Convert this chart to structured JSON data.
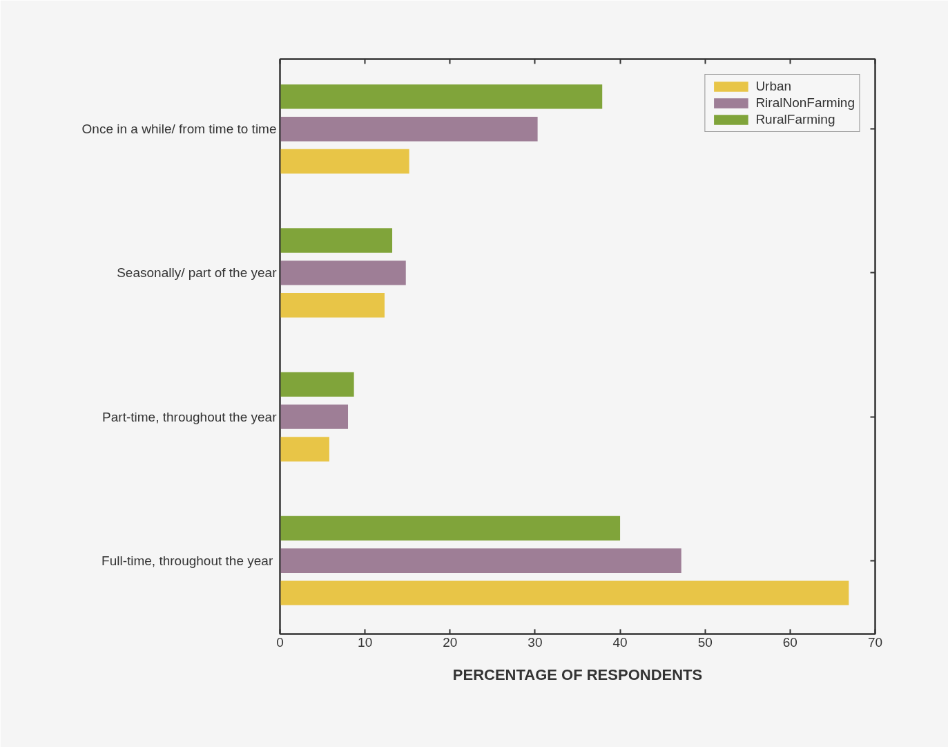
{
  "chart_data": {
    "type": "bar",
    "orientation": "horizontal",
    "xlabel": "PERCENTAGE OF RESPONDENTS",
    "categories": [
      "Once in a while/ from time to time",
      "Seasonally/ part of the year",
      "Part-time, throughout the year",
      "Full-time, throughout  the year"
    ],
    "series": [
      {
        "name": "Urban",
        "color": "#e8c547",
        "values": [
          15.2,
          12.3,
          5.8,
          66.9
        ]
      },
      {
        "name": "RiralNonFarming",
        "color": "#9e7e96",
        "values": [
          30.3,
          14.8,
          8.0,
          47.2
        ]
      },
      {
        "name": "RuralFarming",
        "color": "#80a43a",
        "values": [
          37.9,
          13.2,
          8.7,
          40.0
        ]
      }
    ],
    "xlim": [
      0,
      70
    ],
    "xticks": [
      0,
      10,
      20,
      30,
      40,
      50,
      60,
      70
    ],
    "legend": "top right",
    "grid": false
  }
}
